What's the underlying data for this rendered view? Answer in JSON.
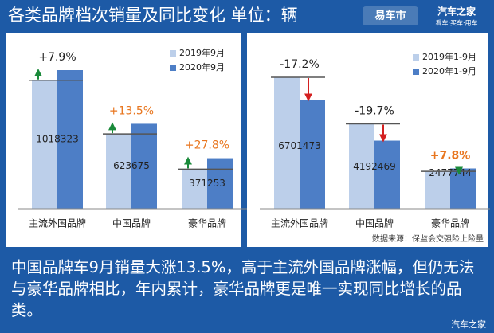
{
  "header": {
    "title": "各类品牌档次销量及同比变化  单位：辆",
    "logo1": "易车市",
    "logo2": "汽车之家",
    "logo2_sub": "看车·买车·用车"
  },
  "chart_data": [
    {
      "type": "bar",
      "categories": [
        "主流外国品牌",
        "中国品牌",
        "豪华品牌"
      ],
      "series": [
        {
          "name": "2019年9月",
          "color": "#bccfea",
          "values": [
            943766,
            549493,
            290495
          ]
        },
        {
          "name": "2020年9月",
          "color": "#4d7ec6",
          "values": [
            1018323,
            623675,
            371253
          ]
        }
      ],
      "annotations": [
        "+7.9%",
        "+13.5%",
        "+27.8%"
      ],
      "annotation_colors": [
        "#222222",
        "#e8761f",
        "#e8761f"
      ],
      "arrow_colors": [
        "#1a8a3a",
        "#1a8a3a",
        "#1a8a3a"
      ]
    },
    {
      "type": "bar",
      "categories": [
        "主流外国品牌",
        "中国品牌",
        "豪华品牌"
      ],
      "series": [
        {
          "name": "2019年1-9月",
          "color": "#bccfea",
          "values": [
            8093566,
            5220995,
            2298464
          ]
        },
        {
          "name": "2020年1-9月",
          "color": "#4d7ec6",
          "values": [
            6701473,
            4192469,
            2477744
          ]
        }
      ],
      "annotations": [
        "-17.2%",
        "-19.7%",
        "+7.8%"
      ],
      "annotation_colors": [
        "#222222",
        "#222222",
        "#e8761f"
      ],
      "arrow_colors": [
        "#d42020",
        "#d42020",
        "#1a8a3a"
      ],
      "source": "数据来源：保监会交强险上险量"
    }
  ],
  "caption": "中国品牌车9月销量大涨13.5%，高于主流外国品牌涨幅，但仍无法与豪华品牌相比，年内累计，豪华品牌更是唯一实现同比增长的品类。",
  "watermark": "汽车之家"
}
